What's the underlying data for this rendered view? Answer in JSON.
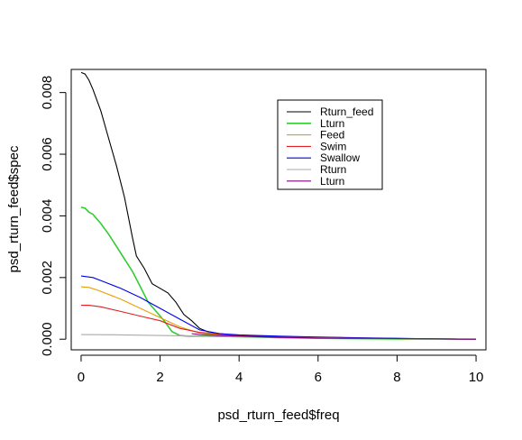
{
  "chart_data": {
    "type": "line",
    "xlabel": "psd_rturn_feed$freq",
    "ylabel": "psd_rturn_feed$spec",
    "xlim": [
      -0.25,
      10.25
    ],
    "ylim": [
      -0.000345,
      0.00875
    ],
    "xticks": [
      0,
      2,
      4,
      6,
      8,
      10
    ],
    "yticks": [
      0,
      0.002,
      0.004,
      0.006,
      0.008
    ],
    "xtick_labels": [
      "0",
      "2",
      "4",
      "6",
      "8",
      "10"
    ],
    "ytick_labels": [
      "0.000",
      "0.002",
      "0.004",
      "0.006",
      "0.008"
    ],
    "grid": false,
    "legend_position": "top-right",
    "series": [
      {
        "name": "Rturn_feed",
        "color": "#000000",
        "x": [
          0,
          0.1,
          0.2,
          0.3,
          0.5,
          0.7,
          0.9,
          1.1,
          1.3,
          1.4,
          1.6,
          1.8,
          2.0,
          2.2,
          2.4,
          2.6,
          2.8,
          3.0,
          3.2,
          3.5,
          4.0,
          5.0,
          6.0,
          7.0,
          8.0,
          9.0,
          10.0
        ],
        "y": [
          0.00865,
          0.0086,
          0.0084,
          0.0081,
          0.0074,
          0.0065,
          0.0056,
          0.0046,
          0.0033,
          0.0027,
          0.0023,
          0.0018,
          0.00165,
          0.0015,
          0.0012,
          0.0008,
          0.0006,
          0.00035,
          0.00025,
          0.00018,
          0.00012,
          8e-05,
          6e-05,
          4e-05,
          2e-05,
          1e-05,
          0.0
        ]
      },
      {
        "name": "Lturn",
        "color": "#33cc33",
        "x": [
          0,
          0.1,
          0.2,
          0.3,
          0.5,
          0.7,
          0.9,
          1.1,
          1.3,
          1.5,
          1.7,
          1.9,
          2.1,
          2.3,
          2.5,
          2.7,
          3.0,
          4.0,
          5.0,
          6.0,
          8.0,
          10.0
        ],
        "y": [
          0.00428,
          0.00425,
          0.00412,
          0.00405,
          0.00375,
          0.0034,
          0.003,
          0.0026,
          0.0022,
          0.0017,
          0.0012,
          0.0009,
          0.0006,
          0.00025,
          0.00012,
          0.0001,
          0.0001,
          8e-05,
          5e-05,
          3e-05,
          1e-05,
          0.0
        ]
      },
      {
        "name": "Feed",
        "color": "#e69f00",
        "x": [
          0,
          0.2,
          0.4,
          0.6,
          0.8,
          1.0,
          1.5,
          2.0,
          2.5,
          3.0,
          4.0,
          5.0,
          6.0,
          8.0,
          10.0
        ],
        "y": [
          0.0017,
          0.00168,
          0.0016,
          0.0015,
          0.0014,
          0.0013,
          0.001,
          0.0007,
          0.0004,
          0.0002,
          0.0001,
          6e-05,
          4e-05,
          2e-05,
          0.0
        ]
      },
      {
        "name": "Swim",
        "color": "#df2020",
        "x": [
          0,
          0.2,
          0.5,
          1.0,
          1.5,
          2.0,
          2.5,
          3.0,
          4.0,
          5.0,
          6.0,
          8.0,
          10.0
        ],
        "y": [
          0.0011,
          0.0011,
          0.00105,
          0.0009,
          0.00075,
          0.0006,
          0.00035,
          0.00022,
          0.00012,
          7e-05,
          4e-05,
          2e-05,
          0.0
        ]
      },
      {
        "name": "Swallow",
        "color": "#0000ee",
        "x": [
          0,
          0.3,
          0.6,
          1.0,
          1.5,
          2.0,
          2.5,
          3.0,
          3.5,
          4.0,
          5.0,
          6.0,
          7.0,
          8.0,
          9.0,
          10.0
        ],
        "y": [
          0.00205,
          0.002,
          0.00185,
          0.00165,
          0.00135,
          0.001,
          0.00065,
          0.0003,
          0.00018,
          0.00014,
          0.0001,
          7e-05,
          5e-05,
          3e-05,
          1e-05,
          0.0
        ]
      },
      {
        "name": "Rturn",
        "color": "#aaaaaa",
        "x": [
          0,
          1.0,
          2.0,
          3.0,
          4.0,
          5.0,
          6.0,
          7.0,
          8.0,
          9.0,
          10.0
        ],
        "y": [
          0.00015,
          0.00014,
          0.00012,
          0.0001,
          8e-05,
          6e-05,
          5e-05,
          3e-05,
          2e-05,
          1e-05,
          0.0
        ]
      },
      {
        "name": "Lturn",
        "color": "#800080",
        "x": [
          2.8,
          3.0,
          3.5,
          4.0,
          5.0,
          6.0,
          8.0,
          10.0
        ],
        "y": [
          0.00018,
          0.00015,
          0.00012,
          0.0001,
          6e-05,
          4e-05,
          2e-05,
          0.0
        ]
      }
    ]
  }
}
